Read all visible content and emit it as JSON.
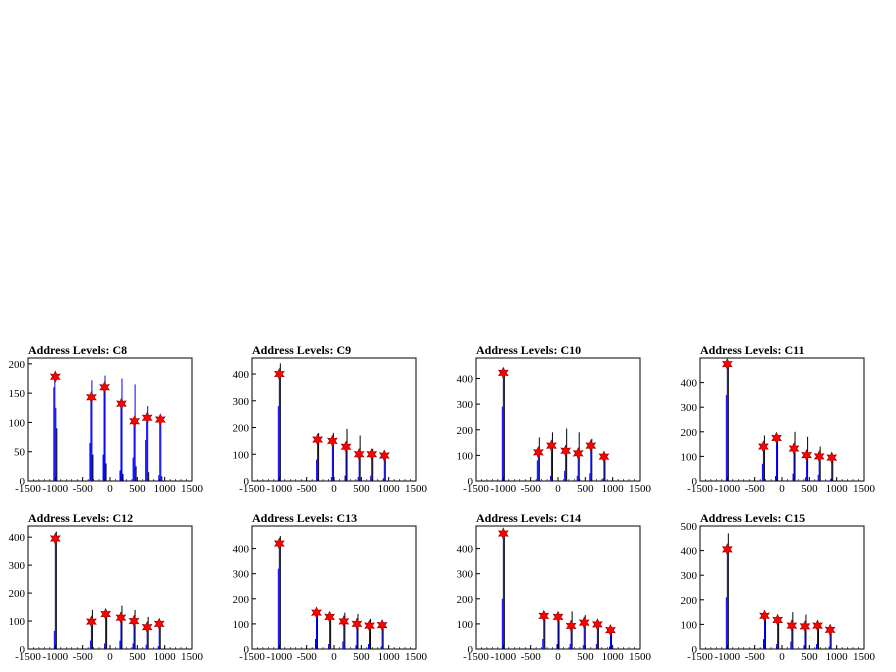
{
  "chart_data": [
    {
      "type": "bar",
      "title": "Address Levels: C8",
      "xlim": [
        -1500,
        1500
      ],
      "ylim": [
        0,
        210
      ],
      "xticks": [
        "-1500",
        "-1000",
        "-500",
        "0",
        "500",
        "1000",
        "1500"
      ],
      "yticks": [
        "0",
        "50",
        "100",
        "150",
        "200"
      ],
      "bars": [
        {
          "x": -1000,
          "values": [
            160,
            178,
            125,
            90
          ]
        },
        {
          "x": -340,
          "values": [
            65,
            145,
            172,
            45
          ]
        },
        {
          "x": -100,
          "values": [
            45,
            160,
            180,
            30
          ]
        },
        {
          "x": 210,
          "values": [
            18,
            132,
            175,
            12
          ]
        },
        {
          "x": 450,
          "values": [
            40,
            100,
            165,
            25
          ]
        },
        {
          "x": 680,
          "values": [
            70,
            110,
            128,
            15
          ]
        },
        {
          "x": 920,
          "values": [
            10,
            105,
            108,
            8
          ]
        }
      ],
      "peaks": {
        "x": [
          -1000,
          -340,
          -100,
          210,
          450,
          680,
          920
        ],
        "y": [
          178,
          143,
          160,
          132,
          102,
          108,
          105
        ]
      }
    },
    {
      "type": "bar",
      "title": "Address Levels: C9",
      "xlim": [
        -1500,
        1500
      ],
      "ylim": [
        0,
        460
      ],
      "xticks": [
        "-1500",
        "-1000",
        "-500",
        "0",
        "500",
        "1000",
        "1500"
      ],
      "yticks": [
        "0",
        "100",
        "200",
        "300",
        "400"
      ],
      "bars": [
        {
          "x": -1000,
          "values": [
            280,
            400,
            440
          ]
        },
        {
          "x": -300,
          "values": [
            80,
            150,
            180
          ]
        },
        {
          "x": -30,
          "values": [
            15,
            145,
            180
          ]
        },
        {
          "x": 220,
          "values": [
            20,
            125,
            195
          ]
        },
        {
          "x": 460,
          "values": [
            15,
            100,
            170
          ]
        },
        {
          "x": 690,
          "values": [
            20,
            100,
            120
          ]
        },
        {
          "x": 920,
          "values": [
            10,
            95,
            100
          ]
        }
      ],
      "peaks": {
        "x": [
          -1000,
          -300,
          -30,
          220,
          460,
          690,
          920
        ],
        "y": [
          400,
          155,
          150,
          128,
          100,
          100,
          95
        ]
      }
    },
    {
      "type": "bar",
      "title": "Address Levels: C10",
      "xlim": [
        -1500,
        1500
      ],
      "ylim": [
        0,
        480
      ],
      "xticks": [
        "-1500",
        "-1000",
        "-500",
        "0",
        "500",
        "1000",
        "1500"
      ],
      "yticks": [
        "0",
        "100",
        "200",
        "300",
        "400"
      ],
      "bars": [
        {
          "x": -1000,
          "values": [
            290,
            420,
            430
          ]
        },
        {
          "x": -360,
          "values": [
            80,
            110,
            170
          ]
        },
        {
          "x": -120,
          "values": [
            20,
            140,
            190
          ]
        },
        {
          "x": 140,
          "values": [
            40,
            120,
            205
          ]
        },
        {
          "x": 370,
          "values": [
            20,
            105,
            190
          ]
        },
        {
          "x": 600,
          "values": [
            30,
            140,
            165
          ]
        },
        {
          "x": 840,
          "values": [
            10,
            95,
            100
          ]
        }
      ],
      "peaks": {
        "x": [
          -1000,
          -360,
          -120,
          140,
          370,
          600,
          840
        ],
        "y": [
          422,
          112,
          138,
          118,
          108,
          138,
          95
        ]
      }
    },
    {
      "type": "bar",
      "title": "Address Levels: C11",
      "xlim": [
        -1500,
        1500
      ],
      "ylim": [
        0,
        500
      ],
      "xticks": [
        "-1500",
        "-1000",
        "-500",
        "0",
        "500",
        "1000",
        "1500"
      ],
      "yticks": [
        "0",
        "100",
        "200",
        "300",
        "400"
      ],
      "bars": [
        {
          "x": -1000,
          "values": [
            350,
            475,
            480
          ]
        },
        {
          "x": -340,
          "values": [
            70,
            140,
            185
          ]
        },
        {
          "x": -100,
          "values": [
            20,
            175,
            185
          ]
        },
        {
          "x": 220,
          "values": [
            30,
            130,
            200
          ]
        },
        {
          "x": 450,
          "values": [
            15,
            105,
            180
          ]
        },
        {
          "x": 680,
          "values": [
            25,
            100,
            140
          ]
        },
        {
          "x": 910,
          "values": [
            10,
            95,
            105
          ]
        }
      ],
      "peaks": {
        "x": [
          -1000,
          -340,
          -100,
          220,
          450,
          680,
          910
        ],
        "y": [
          475,
          140,
          175,
          132,
          105,
          100,
          95
        ]
      }
    },
    {
      "type": "bar",
      "title": "Address Levels: C12",
      "xlim": [
        -1500,
        1500
      ],
      "ylim": [
        0,
        440
      ],
      "xticks": [
        "-1500",
        "-1000",
        "-500",
        "0",
        "500",
        "1000",
        "1500"
      ],
      "yticks": [
        "0",
        "100",
        "200",
        "300",
        "400"
      ],
      "bars": [
        {
          "x": -1000,
          "values": [
            65,
            395,
            420
          ]
        },
        {
          "x": -340,
          "values": [
            30,
            100,
            140
          ]
        },
        {
          "x": -80,
          "values": [
            20,
            125,
            135
          ]
        },
        {
          "x": 200,
          "values": [
            30,
            110,
            155
          ]
        },
        {
          "x": 440,
          "values": [
            20,
            100,
            140
          ]
        },
        {
          "x": 680,
          "values": [
            15,
            80,
            115
          ]
        },
        {
          "x": 900,
          "values": [
            10,
            90,
            95
          ]
        }
      ],
      "peaks": {
        "x": [
          -1000,
          -340,
          -80,
          200,
          440,
          680,
          900
        ],
        "y": [
          395,
          98,
          125,
          112,
          100,
          78,
          90
        ]
      }
    },
    {
      "type": "bar",
      "title": "Address Levels: C13",
      "xlim": [
        -1500,
        1500
      ],
      "ylim": [
        0,
        490
      ],
      "xticks": [
        "-1500",
        "-1000",
        "-500",
        "0",
        "500",
        "1000",
        "1500"
      ],
      "yticks": [
        "0",
        "100",
        "200",
        "300",
        "400"
      ],
      "bars": [
        {
          "x": -1000,
          "values": [
            320,
            420,
            450
          ]
        },
        {
          "x": -320,
          "values": [
            40,
            145,
            150
          ]
        },
        {
          "x": -80,
          "values": [
            20,
            128,
            135
          ]
        },
        {
          "x": 180,
          "values": [
            30,
            110,
            145
          ]
        },
        {
          "x": 420,
          "values": [
            15,
            100,
            140
          ]
        },
        {
          "x": 650,
          "values": [
            20,
            95,
            120
          ]
        },
        {
          "x": 880,
          "values": [
            10,
            95,
            100
          ]
        }
      ],
      "peaks": {
        "x": [
          -1000,
          -320,
          -80,
          180,
          420,
          650,
          880
        ],
        "y": [
          420,
          145,
          128,
          110,
          100,
          93,
          95
        ]
      }
    },
    {
      "type": "bar",
      "title": "Address Levels: C14",
      "xlim": [
        -1500,
        1500
      ],
      "ylim": [
        0,
        490
      ],
      "xticks": [
        "-1500",
        "-1000",
        "-500",
        "0",
        "500",
        "1000",
        "1500"
      ],
      "yticks": [
        "0",
        "100",
        "200",
        "300",
        "400"
      ],
      "bars": [
        {
          "x": -1000,
          "values": [
            200,
            460,
            470
          ]
        },
        {
          "x": -260,
          "values": [
            40,
            132,
            140
          ]
        },
        {
          "x": 0,
          "values": [
            20,
            128,
            135
          ]
        },
        {
          "x": 240,
          "values": [
            20,
            92,
            150
          ]
        },
        {
          "x": 480,
          "values": [
            15,
            105,
            135
          ]
        },
        {
          "x": 720,
          "values": [
            20,
            98,
            110
          ]
        },
        {
          "x": 960,
          "values": [
            10,
            75,
            80
          ]
        }
      ],
      "peaks": {
        "x": [
          -1000,
          -260,
          0,
          240,
          480,
          720,
          960
        ],
        "y": [
          460,
          132,
          128,
          92,
          105,
          98,
          75
        ]
      }
    },
    {
      "type": "bar",
      "title": "Address Levels: C15",
      "xlim": [
        -1500,
        1500
      ],
      "ylim": [
        0,
        500
      ],
      "xticks": [
        "-1500",
        "-1000",
        "-500",
        "0",
        "500",
        "1000",
        "1500"
      ],
      "yticks": [
        "0",
        "100",
        "200",
        "300",
        "400",
        "500"
      ],
      "bars": [
        {
          "x": -1000,
          "values": [
            210,
            405,
            470
          ]
        },
        {
          "x": -320,
          "values": [
            40,
            135,
            140
          ]
        },
        {
          "x": -80,
          "values": [
            20,
            118,
            125
          ]
        },
        {
          "x": 180,
          "values": [
            30,
            95,
            150
          ]
        },
        {
          "x": 420,
          "values": [
            15,
            92,
            140
          ]
        },
        {
          "x": 650,
          "values": [
            20,
            95,
            105
          ]
        },
        {
          "x": 880,
          "values": [
            10,
            78,
            90
          ]
        }
      ],
      "peaks": {
        "x": [
          -1000,
          -320,
          -80,
          180,
          420,
          650,
          880
        ],
        "y": [
          405,
          135,
          118,
          95,
          92,
          95,
          78
        ]
      }
    }
  ],
  "colors": {
    "bar": "#0000ff",
    "bar_edge": "#000000",
    "marker": "#ff0000",
    "axis": "#000000"
  }
}
